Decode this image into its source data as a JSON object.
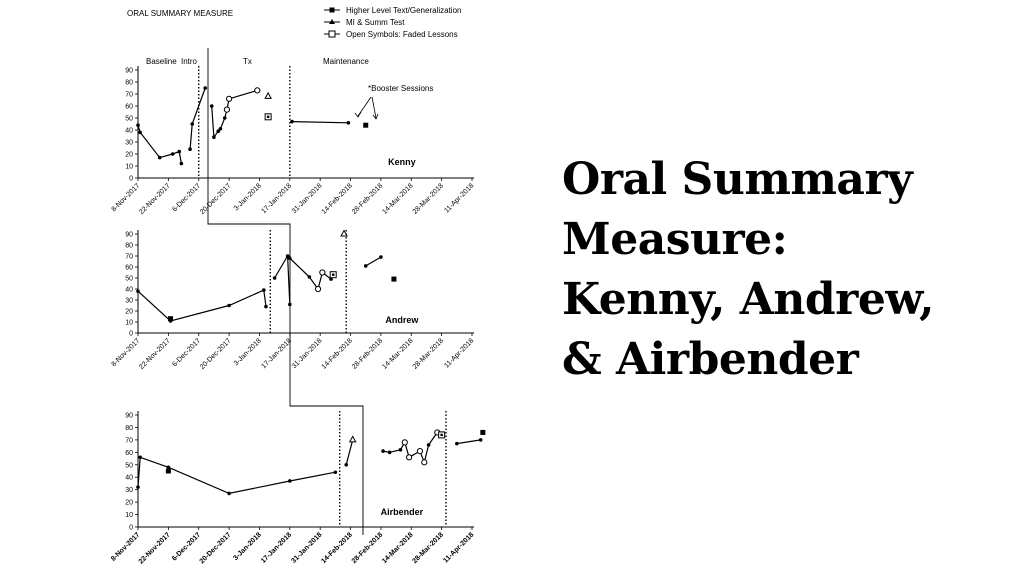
{
  "slide": {
    "title_lines": [
      "Oral Summary",
      "Measure:",
      "Kenny, Andrew,",
      "& Airbender"
    ]
  },
  "chart_data": {
    "type": "line",
    "title": "ORAL SUMMARY MEASURE",
    "legend": [
      {
        "label": "Higher Level Text/Generalization",
        "symbol": "square"
      },
      {
        "label": "MI & Summ Test",
        "symbol": "triangle"
      },
      {
        "label": "Open Symbols: Faded Lessons",
        "symbol": "open-square"
      }
    ],
    "phase_labels": [
      "Baseline",
      "Intro",
      "Tx",
      "Maintenance"
    ],
    "annotation": "*Booster Sessions",
    "x_axis": {
      "type": "date",
      "range": [
        "2017-11-08",
        "2018-04-11"
      ],
      "tick_labels": [
        "8-Nov-2017",
        "22-Nov-2017",
        "6-Dec-2017",
        "20-Dec-2017",
        "3-Jan-2018",
        "17-Jan-2018",
        "31-Jan-2018",
        "14-Feb-2018",
        "28-Feb-2018",
        "14-Mar-2018",
        "28-Mar-2018",
        "11-Apr-2018"
      ]
    },
    "y_axis": {
      "range": [
        0,
        90
      ],
      "ticks": [
        0,
        10,
        20,
        30,
        40,
        50,
        60,
        70,
        80,
        90
      ]
    },
    "panels": [
      {
        "participant": "Kenny",
        "phase_changes": [
          "2017-12-06",
          "2018-01-17"
        ],
        "series": [
          {
            "segment": "baseline",
            "points": [
              [
                "2017-11-08",
                44
              ],
              [
                "2017-11-09",
                38
              ],
              [
                "2017-11-18",
                17
              ],
              [
                "2017-11-24",
                20
              ],
              [
                "2017-11-27",
                22
              ],
              [
                "2017-11-28",
                12
              ]
            ]
          },
          {
            "segment": "intro",
            "points": [
              [
                "2017-12-02",
                24
              ],
              [
                "2017-12-03",
                45
              ],
              [
                "2017-12-09",
                75
              ]
            ]
          },
          {
            "segment": "tx",
            "points": [
              [
                "2017-12-12",
                60
              ],
              [
                "2017-12-13",
                34
              ],
              [
                "2017-12-15",
                39
              ],
              [
                "2017-12-16",
                41
              ],
              [
                "2017-12-18",
                50
              ],
              [
                "2017-12-19",
                57
              ],
              [
                "2017-12-20",
                66
              ],
              [
                "2018-01-02",
                73
              ]
            ]
          },
          {
            "segment": "maintenance",
            "points": [
              [
                "2018-01-18",
                47
              ],
              [
                "2018-02-13",
                46
              ]
            ]
          }
        ],
        "triangles": [
          [
            "2018-01-07",
            68
          ]
        ],
        "squares": [
          [
            "2018-02-21",
            44
          ]
        ],
        "open_squares": [
          [
            "2018-01-07",
            51
          ]
        ],
        "open_circles": [
          [
            "2017-12-19",
            57
          ],
          [
            "2017-12-20",
            66
          ],
          [
            "2018-01-02",
            73
          ]
        ]
      },
      {
        "participant": "Andrew",
        "phase_changes": [
          "2018-01-08",
          "2018-02-12"
        ],
        "series": [
          {
            "segment": "baseline",
            "points": [
              [
                "2017-11-08",
                38
              ],
              [
                "2017-11-23",
                11
              ],
              [
                "2017-12-20",
                25
              ],
              [
                "2018-01-05",
                39
              ],
              [
                "2018-01-06",
                24
              ]
            ]
          },
          {
            "segment": "tx",
            "points": [
              [
                "2018-01-10",
                50
              ],
              [
                "2018-01-16",
                70
              ],
              [
                "2018-01-17",
                26
              ]
            ]
          },
          {
            "segment": "tx",
            "points": [
              [
                "2018-01-17",
                68
              ],
              [
                "2018-01-26",
                51
              ],
              [
                "2018-01-30",
                40
              ],
              [
                "2018-02-01",
                55
              ],
              [
                "2018-02-05",
                49
              ],
              [
                "2018-02-06",
                53
              ]
            ]
          },
          {
            "segment": "maintenance",
            "points": [
              [
                "2018-02-21",
                61
              ],
              [
                "2018-02-28",
                69
              ]
            ]
          }
        ],
        "triangles": [
          [
            "2018-02-11",
            90
          ]
        ],
        "squares": [
          [
            "2017-11-23",
            13
          ],
          [
            "2018-03-06",
            49
          ]
        ],
        "open_squares": [
          [
            "2018-02-06",
            53
          ]
        ],
        "open_circles": [
          [
            "2018-02-01",
            55
          ],
          [
            "2018-01-30",
            40
          ]
        ]
      },
      {
        "participant": "Airbender",
        "phase_changes": [
          "2018-02-09",
          "2018-03-30"
        ],
        "series": [
          {
            "segment": "baseline",
            "points": [
              [
                "2017-11-08",
                32
              ],
              [
                "2017-11-09",
                56
              ],
              [
                "2017-11-22",
                48
              ],
              [
                "2017-12-20",
                27
              ],
              [
                "2018-01-17",
                37
              ],
              [
                "2018-02-07",
                44
              ]
            ]
          },
          {
            "segment": "intro",
            "points": [
              [
                "2018-02-12",
                50
              ],
              [
                "2018-02-15",
                70
              ]
            ]
          },
          {
            "segment": "tx",
            "points": [
              [
                "2018-03-01",
                61
              ],
              [
                "2018-03-04",
                60
              ],
              [
                "2018-03-09",
                62
              ],
              [
                "2018-03-11",
                68
              ],
              [
                "2018-03-13",
                56
              ],
              [
                "2018-03-18",
                61
              ],
              [
                "2018-03-20",
                52
              ],
              [
                "2018-03-22",
                66
              ],
              [
                "2018-03-26",
                76
              ],
              [
                "2018-03-28",
                74
              ]
            ]
          },
          {
            "segment": "maintenance",
            "points": [
              [
                "2018-04-04",
                67
              ],
              [
                "2018-04-15",
                70
              ]
            ]
          }
        ],
        "triangles": [
          [
            "2018-02-15",
            70
          ]
        ],
        "squares": [
          [
            "2017-11-22",
            45
          ],
          [
            "2018-04-16",
            76
          ]
        ],
        "open_squares": [
          [
            "2018-03-28",
            74
          ]
        ],
        "open_circles": [
          [
            "2018-03-11",
            68
          ],
          [
            "2018-03-13",
            56
          ],
          [
            "2018-03-18",
            61
          ],
          [
            "2018-03-20",
            52
          ],
          [
            "2018-03-26",
            76
          ]
        ]
      }
    ]
  }
}
